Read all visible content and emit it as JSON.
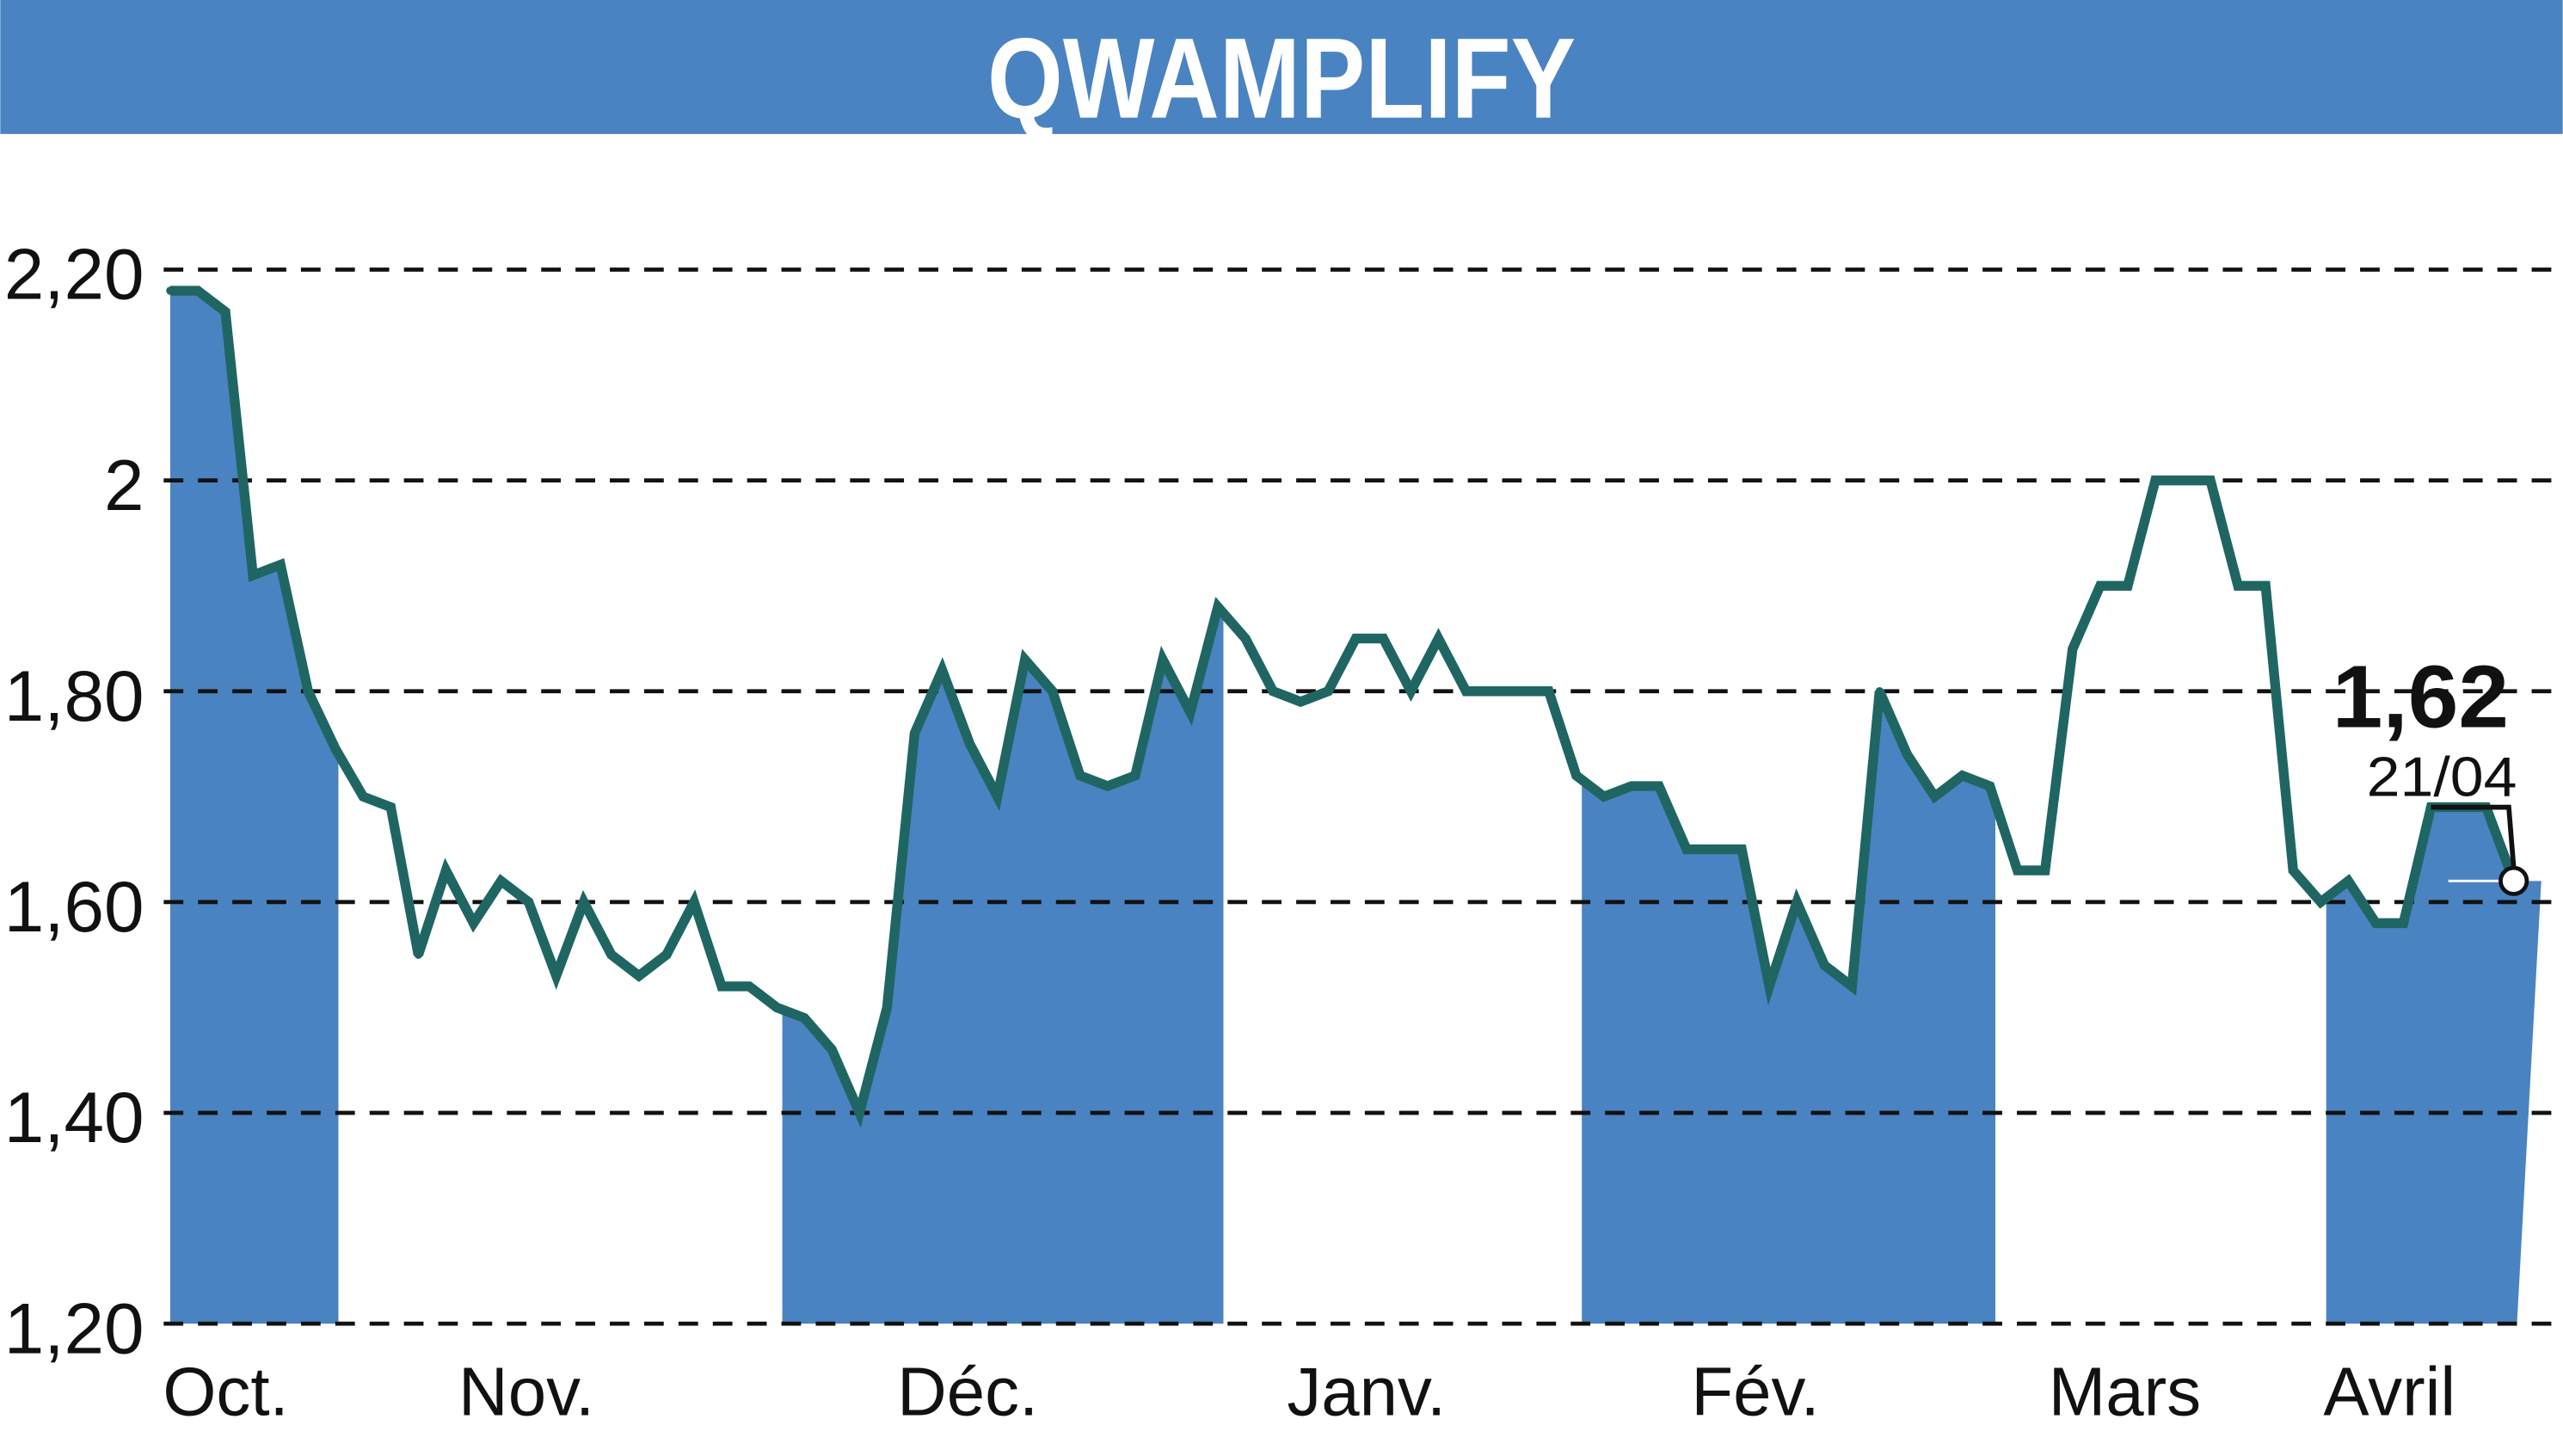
{
  "header": {
    "title": "QWAMPLIFY",
    "bg_color": "#4a83c1"
  },
  "chart_data": {
    "type": "line",
    "title": "QWAMPLIFY",
    "xlabel": "",
    "ylabel": "",
    "ylim": [
      1.2,
      2.2
    ],
    "y_ticks": [
      "1,20",
      "1,40",
      "1,60",
      "1,80",
      "2",
      "2,20"
    ],
    "y_tick_values": [
      1.2,
      1.4,
      1.6,
      1.8,
      2.0,
      2.2
    ],
    "x_tick_labels": [
      "Oct.",
      "Nov.",
      "Déc.",
      "Janv.",
      "Fév.",
      "Mars",
      "Avril"
    ],
    "grid": "horizontal dashed",
    "line_color": "#1f6663",
    "fill_color": "#4a83c1",
    "last_value_label": "1,62",
    "last_date_label": "21/04",
    "values": [
      2.18,
      2.18,
      2.16,
      1.91,
      1.92,
      1.8,
      1.745,
      1.7,
      1.69,
      1.55,
      1.63,
      1.58,
      1.62,
      1.6,
      1.53,
      1.6,
      1.55,
      1.53,
      1.55,
      1.6,
      1.52,
      1.52,
      1.5,
      1.49,
      1.46,
      1.4,
      1.5,
      1.76,
      1.82,
      1.75,
      1.7,
      1.83,
      1.8,
      1.72,
      1.71,
      1.72,
      1.83,
      1.78,
      1.88,
      1.85,
      1.8,
      1.79,
      1.8,
      1.85,
      1.85,
      1.8,
      1.85,
      1.8,
      1.8,
      1.8,
      1.8,
      1.72,
      1.7,
      1.71,
      1.71,
      1.65,
      1.65,
      1.65,
      1.52,
      1.6,
      1.54,
      1.52,
      1.8,
      1.74,
      1.7,
      1.72,
      1.71,
      1.63,
      1.63,
      1.84,
      1.9,
      1.9,
      2.0,
      2.0,
      2.0,
      1.9,
      1.9,
      1.63,
      1.6,
      1.62,
      1.58,
      1.58,
      1.69,
      1.69,
      1.69,
      1.62
    ]
  }
}
